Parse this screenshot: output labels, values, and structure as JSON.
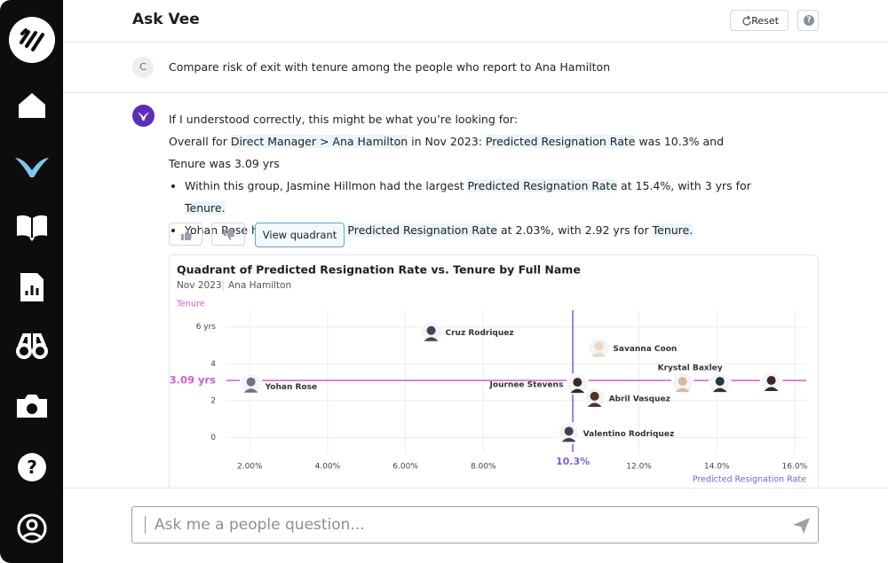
{
  "header": {
    "title": "Ask Vee",
    "reset": "Reset",
    "help": "?"
  },
  "question": {
    "avatar": "C",
    "text": "Compare risk of exit with tenure among the people who report to Ana Hamilton"
  },
  "answer": {
    "intro": "If I understood correctly, this might be what you’re looking for:",
    "summary": [
      {
        "text": "Overall for ",
        "highlight": false
      },
      {
        "text": "Direct Manager > Ana Hamilton",
        "highlight": true
      },
      {
        "text": " in Nov 2023: ",
        "highlight": false
      },
      {
        "text": "Predicted Resignation Rate",
        "highlight": true
      },
      {
        "text": " was 10.3% and Tenure was 3.09 yrs",
        "highlight": false
      }
    ],
    "bullets": [
      [
        {
          "text": "Within this group, Jasmine Hillmon had the largest ",
          "highlight": false
        },
        {
          "text": "Predicted Resignation Rate",
          "highlight": true
        },
        {
          "text": " at 15.4%, with 3 yrs for ",
          "highlight": false
        },
        {
          "text": "Tenure.",
          "highlight": true
        }
      ],
      [
        {
          "text": "Yohan Rose had the smallest ",
          "highlight": false
        },
        {
          "text": "Predicted Resignation Rate",
          "highlight": true
        },
        {
          "text": " at 2.03%, with 2.92 yrs for ",
          "highlight": false
        },
        {
          "text": "Tenure.",
          "highlight": true
        }
      ]
    ],
    "button": "View quadrant"
  },
  "chart_data": {
    "type": "scatter",
    "title": "Quadrant of Predicted Resignation Rate vs. Tenure by Full Name",
    "subtitle": [
      "Nov 2023",
      "Ana Hamilton"
    ],
    "y_label": "Tenure",
    "x_label": "Predicted Resignation Rate",
    "xlim": [
      1.4,
      16.3
    ],
    "ylim": [
      -0.8,
      6.9
    ],
    "xticks": [
      {
        "value": 2,
        "label": "2.00%"
      },
      {
        "value": 4,
        "label": "4.00%"
      },
      {
        "value": 6,
        "label": "6.00%"
      },
      {
        "value": 8,
        "label": "8.00%"
      },
      {
        "value": 12,
        "label": "12.0%"
      },
      {
        "value": 14,
        "label": "14.0%"
      },
      {
        "value": 16,
        "label": "16.0%"
      }
    ],
    "yticks": [
      0,
      2,
      4,
      {
        "value": 6,
        "label": "6 yrs"
      }
    ],
    "grid": true,
    "x_reference": {
      "value": 10.3,
      "label": "10.3%",
      "color": "#7b5fd6"
    },
    "y_reference": {
      "value": 3.09,
      "label": "3.09 yrs",
      "color": "#d35fc7"
    },
    "points": [
      {
        "name": "Yohan Rose",
        "x": 2.03,
        "y": 2.92
      },
      {
        "name": "Cruz Rodriquez",
        "x": 6.66,
        "y": 5.71
      },
      {
        "name": "Savanna Coon",
        "x": 10.97,
        "y": 4.86
      },
      {
        "name": "Krystal Baxley",
        "x": 13.12,
        "y": 2.95
      },
      {
        "name": "Journee Stevens",
        "x": 10.42,
        "y": 2.9
      },
      {
        "name": "Abril Vasquez",
        "x": 10.86,
        "y": 2.14
      },
      {
        "name": "Valentino Rodriquez",
        "x": 10.2,
        "y": 0.24
      },
      {
        "name": null,
        "x": 14.08,
        "y": 2.95
      },
      {
        "name": null,
        "x": 15.4,
        "y": 3
      }
    ]
  },
  "input": {
    "placeholder": "Ask me a people question..."
  }
}
